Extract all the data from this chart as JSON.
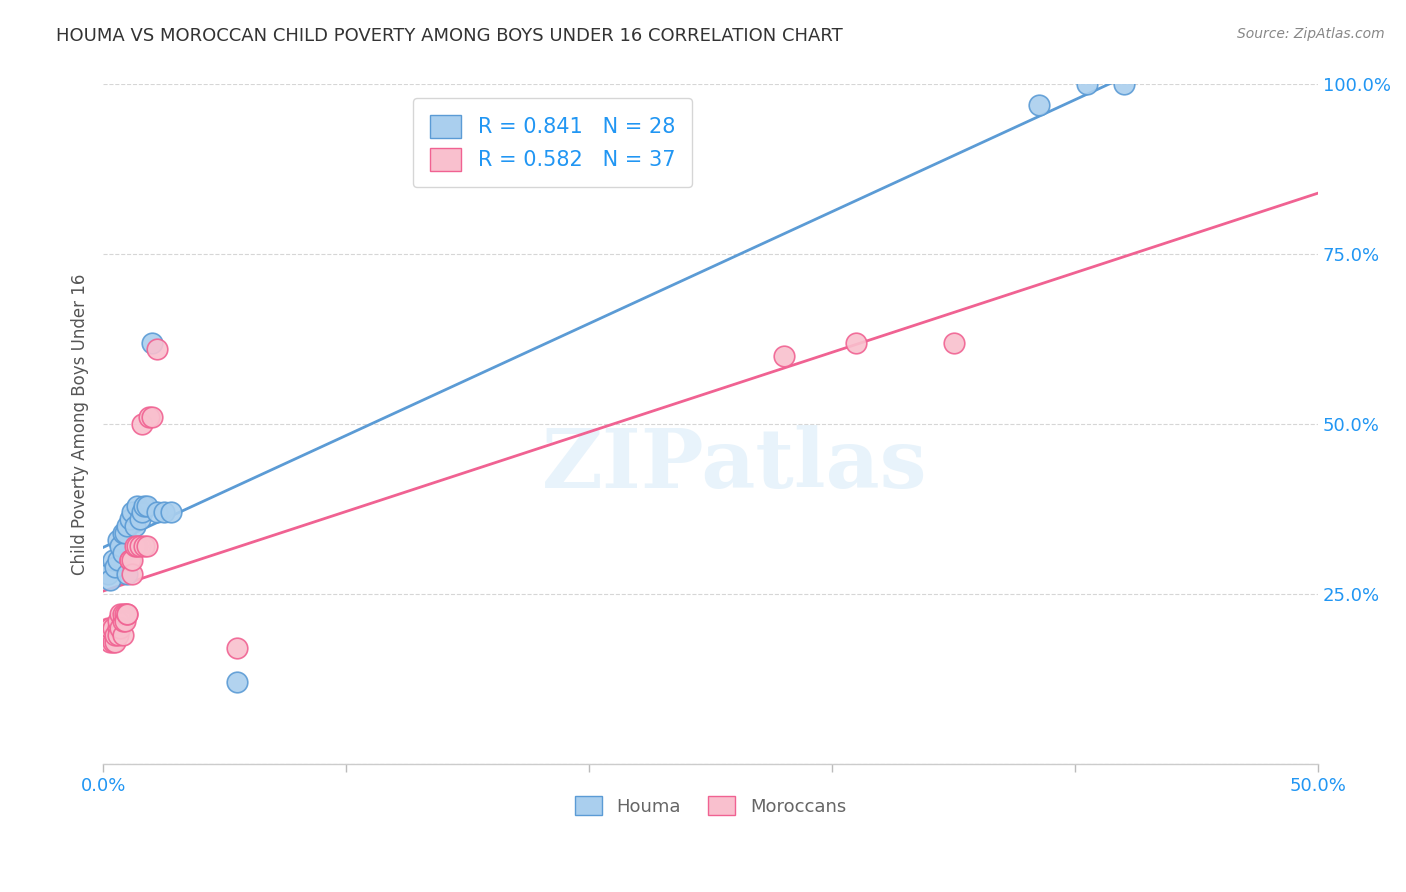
{
  "title": "HOUMA VS MOROCCAN CHILD POVERTY AMONG BOYS UNDER 16 CORRELATION CHART",
  "source": "Source: ZipAtlas.com",
  "ylabel": "Child Poverty Among Boys Under 16",
  "xlim": [
    0,
    0.5
  ],
  "ylim": [
    0,
    1.0
  ],
  "xticks": [
    0.0,
    0.1,
    0.2,
    0.3,
    0.4,
    0.5
  ],
  "yticks": [
    0.0,
    0.25,
    0.5,
    0.75,
    1.0
  ],
  "xticklabels_ends": [
    "0.0%",
    "50.0%"
  ],
  "xticks_ends": [
    0.0,
    0.5
  ],
  "yticklabels": [
    "",
    "25.0%",
    "50.0%",
    "75.0%",
    "100.0%"
  ],
  "houma_color": "#aacfee",
  "moroccan_color": "#f9c0ce",
  "houma_edge_color": "#5b9bd5",
  "moroccan_edge_color": "#f06292",
  "houma_line_color": "#5b9bd5",
  "moroccan_line_color": "#f06292",
  "houma_R": 0.841,
  "houma_N": 28,
  "moroccan_R": 0.582,
  "moroccan_N": 37,
  "legend_color": "#2196f3",
  "watermark": "ZIPatlas",
  "background_color": "#ffffff",
  "houma_x": [
    0.002,
    0.003,
    0.004,
    0.005,
    0.006,
    0.006,
    0.007,
    0.008,
    0.008,
    0.009,
    0.01,
    0.01,
    0.011,
    0.012,
    0.013,
    0.014,
    0.015,
    0.016,
    0.017,
    0.018,
    0.02,
    0.022,
    0.025,
    0.028,
    0.055,
    0.385,
    0.405,
    0.42
  ],
  "houma_y": [
    0.28,
    0.27,
    0.3,
    0.29,
    0.33,
    0.3,
    0.32,
    0.34,
    0.31,
    0.34,
    0.35,
    0.28,
    0.36,
    0.37,
    0.35,
    0.38,
    0.36,
    0.37,
    0.38,
    0.38,
    0.62,
    0.37,
    0.37,
    0.37,
    0.12,
    0.97,
    1.0,
    1.0
  ],
  "moroccan_x": [
    0.001,
    0.002,
    0.003,
    0.003,
    0.004,
    0.004,
    0.005,
    0.005,
    0.006,
    0.006,
    0.006,
    0.007,
    0.007,
    0.008,
    0.008,
    0.008,
    0.009,
    0.009,
    0.01,
    0.01,
    0.011,
    0.011,
    0.012,
    0.012,
    0.013,
    0.014,
    0.015,
    0.016,
    0.017,
    0.018,
    0.019,
    0.02,
    0.022,
    0.055,
    0.28,
    0.31,
    0.35
  ],
  "moroccan_y": [
    0.19,
    0.2,
    0.18,
    0.2,
    0.18,
    0.2,
    0.18,
    0.19,
    0.2,
    0.21,
    0.19,
    0.2,
    0.22,
    0.19,
    0.21,
    0.22,
    0.22,
    0.21,
    0.22,
    0.22,
    0.3,
    0.3,
    0.28,
    0.3,
    0.32,
    0.32,
    0.32,
    0.5,
    0.32,
    0.32,
    0.51,
    0.51,
    0.61,
    0.17,
    0.6,
    0.62,
    0.62
  ]
}
